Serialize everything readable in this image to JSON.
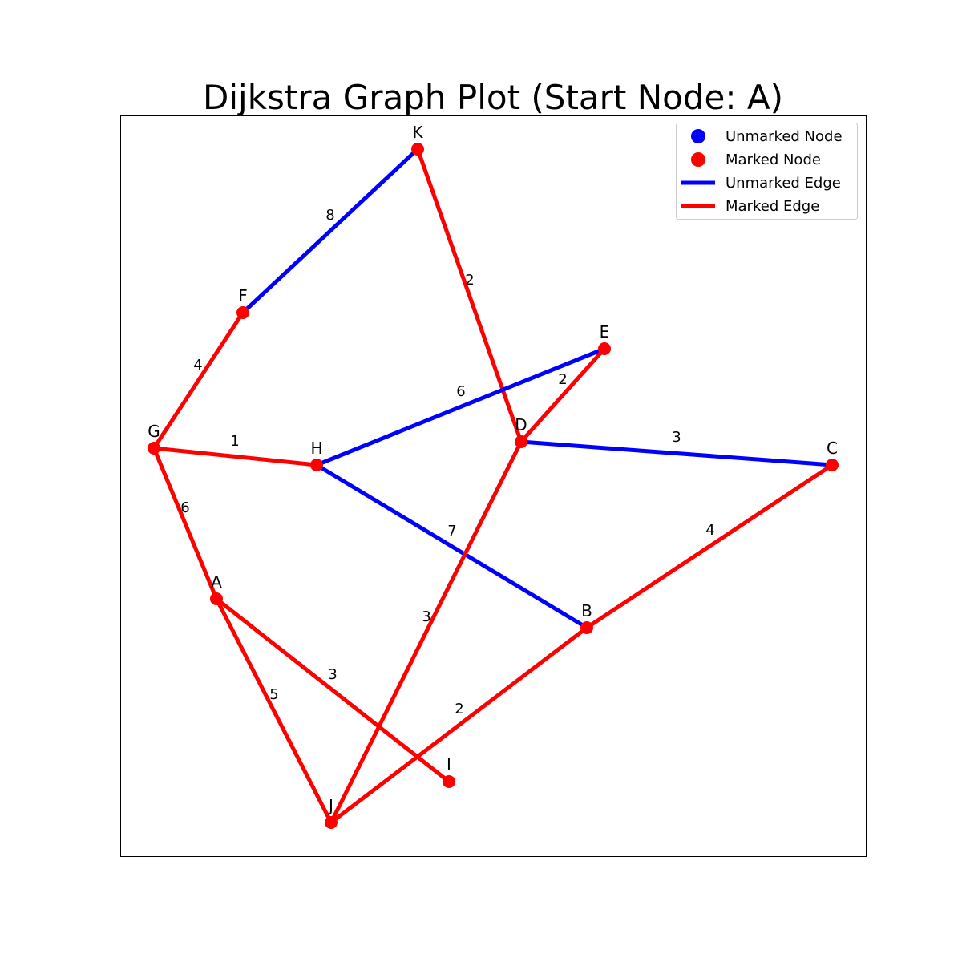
{
  "title": "Dijkstra Graph Plot (Start Node: A)",
  "colors": {
    "marked": "#ff0000",
    "unmarked": "#0000ff"
  },
  "legend": {
    "placement": "top-right",
    "items": [
      {
        "kind": "node",
        "status": "unmarked",
        "label": "Unmarked Node"
      },
      {
        "kind": "node",
        "status": "marked",
        "label": "Marked Node"
      },
      {
        "kind": "edge",
        "status": "unmarked",
        "label": "Unmarked Edge"
      },
      {
        "kind": "edge",
        "status": "marked",
        "label": "Marked Edge"
      }
    ]
  },
  "nodes": [
    {
      "id": "A",
      "status": "marked"
    },
    {
      "id": "B",
      "status": "marked"
    },
    {
      "id": "C",
      "status": "marked"
    },
    {
      "id": "D",
      "status": "marked"
    },
    {
      "id": "E",
      "status": "marked"
    },
    {
      "id": "F",
      "status": "marked"
    },
    {
      "id": "G",
      "status": "marked"
    },
    {
      "id": "H",
      "status": "marked"
    },
    {
      "id": "I",
      "status": "marked"
    },
    {
      "id": "J",
      "status": "marked"
    },
    {
      "id": "K",
      "status": "marked"
    }
  ],
  "edges": [
    {
      "from": "F",
      "to": "K",
      "weight": "8",
      "status": "unmarked"
    },
    {
      "from": "K",
      "to": "D",
      "weight": "2",
      "status": "marked"
    },
    {
      "from": "H",
      "to": "E",
      "weight": "6",
      "status": "unmarked"
    },
    {
      "from": "D",
      "to": "E",
      "weight": "2",
      "status": "marked"
    },
    {
      "from": "D",
      "to": "C",
      "weight": "3",
      "status": "unmarked"
    },
    {
      "from": "H",
      "to": "B",
      "weight": "7",
      "status": "unmarked"
    },
    {
      "from": "G",
      "to": "F",
      "weight": "4",
      "status": "marked"
    },
    {
      "from": "G",
      "to": "H",
      "weight": "1",
      "status": "marked"
    },
    {
      "from": "G",
      "to": "A",
      "weight": "6",
      "status": "marked"
    },
    {
      "from": "A",
      "to": "J",
      "weight": "5",
      "status": "marked"
    },
    {
      "from": "A",
      "to": "I",
      "weight": "3",
      "status": "marked"
    },
    {
      "from": "J",
      "to": "D",
      "weight": "3",
      "status": "marked"
    },
    {
      "from": "J",
      "to": "B",
      "weight": "2",
      "status": "marked"
    },
    {
      "from": "B",
      "to": "C",
      "weight": "4",
      "status": "marked"
    }
  ]
}
